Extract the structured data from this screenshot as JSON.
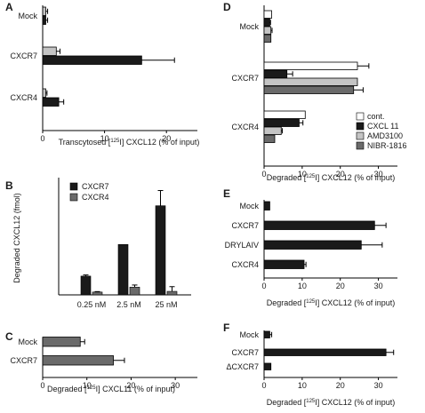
{
  "colors": {
    "black": "#1a1a1a",
    "lightgray": "#c4c4c4",
    "darkgray": "#6a6a6a",
    "white": "#ffffff"
  },
  "panels": {
    "A": {
      "letter": "A",
      "xlabel_pre": "Transcytosed [",
      "xlabel_sup": "125",
      "xlabel_post": "I] CXCL12 (% of input)"
    },
    "B": {
      "letter": "B",
      "ylabel": "Degraded CXCL12 (fmol)"
    },
    "C": {
      "letter": "C",
      "xlabel_pre": "Degraded [",
      "xlabel_sup": "125",
      "xlabel_post": "I] CXCL11 (% of input)"
    },
    "D": {
      "letter": "D",
      "xlabel_pre": "Degraded [",
      "xlabel_sup": "125",
      "xlabel_post": "I] CXCL12 (% of input)"
    },
    "E": {
      "letter": "E",
      "xlabel_pre": "Degraded [",
      "xlabel_sup": "125",
      "xlabel_post": "I] CXCL12 (% of input)"
    },
    "F": {
      "letter": "F",
      "xlabel_pre": "Degraded [",
      "xlabel_sup": "125",
      "xlabel_post": "I] CXCL12 (% of input)"
    }
  },
  "chart_data": [
    {
      "panel": "A",
      "type": "bar",
      "orientation": "horizontal",
      "categories": [
        "Mock",
        "CXCR7",
        "CXCR4"
      ],
      "series": [
        {
          "name": "",
          "color": "lightgray",
          "values": [
            0.5,
            2.2,
            0.5
          ],
          "errors": [
            0.3,
            0.6,
            0.2
          ]
        },
        {
          "name": "",
          "color": "black",
          "values": [
            0.5,
            16.0,
            2.6
          ],
          "errors": [
            0.3,
            5.3,
            0.8
          ]
        }
      ],
      "xlim": [
        0,
        25
      ],
      "xticks": [
        0,
        10,
        20
      ]
    },
    {
      "panel": "B",
      "type": "bar",
      "orientation": "vertical",
      "categories": [
        "0.25 nM",
        "2.5 nM",
        "25 nM"
      ],
      "series": [
        {
          "name": "CXCR7",
          "color": "black",
          "values": [
            8,
            21.5,
            38
          ],
          "errors": [
            0.5,
            0,
            6.5
          ]
        },
        {
          "name": "CXCR4",
          "color": "darkgray",
          "values": [
            1.2,
            3.3,
            1.5
          ],
          "errors": [
            0.2,
            0.9,
            2.0
          ]
        }
      ],
      "ylim": [
        0,
        50
      ],
      "legend": "top-left"
    },
    {
      "panel": "C",
      "type": "bar",
      "orientation": "horizontal",
      "categories": [
        "Mock",
        "CXCR7"
      ],
      "series": [
        {
          "name": "",
          "color": "darkgray",
          "values": [
            8.5,
            16.0
          ],
          "errors": [
            1.0,
            2.5
          ]
        }
      ],
      "xlim": [
        0,
        35
      ],
      "xticks": [
        0,
        10,
        20,
        30
      ]
    },
    {
      "panel": "D",
      "type": "bar",
      "orientation": "horizontal",
      "categories": [
        "Mock",
        "CXCR7",
        "CXCR4"
      ],
      "series": [
        {
          "name": "cont.",
          "color": "white",
          "values": [
            2.0,
            24.5,
            10.8
          ],
          "errors": [
            0,
            3.0,
            0
          ]
        },
        {
          "name": "CXCL 11",
          "color": "black",
          "values": [
            1.5,
            6.0,
            9.2
          ],
          "errors": [
            0.2,
            1.5,
            1.0
          ]
        },
        {
          "name": "AMD3100",
          "color": "lightgray",
          "values": [
            1.8,
            24.5,
            4.5
          ],
          "errors": [
            0.3,
            0,
            0.3
          ]
        },
        {
          "name": "NIBR-1816",
          "color": "darkgray",
          "values": [
            1.8,
            23.5,
            2.8
          ],
          "errors": [
            0,
            2.5,
            0
          ]
        }
      ],
      "xlim": [
        0,
        35
      ],
      "xticks": [
        0,
        10,
        20,
        30
      ],
      "legend": "right"
    },
    {
      "panel": "E",
      "type": "bar",
      "orientation": "horizontal",
      "categories": [
        "Mock",
        "CXCR7",
        "DRYLAIV",
        "CXCR4"
      ],
      "series": [
        {
          "name": "",
          "color": "black",
          "values": [
            1.5,
            29.0,
            25.5,
            10.5
          ],
          "errors": [
            0,
            3.0,
            5.5,
            0.5
          ]
        }
      ],
      "xlim": [
        0,
        35
      ],
      "xticks": [
        0,
        10,
        20,
        30
      ]
    },
    {
      "panel": "F",
      "type": "bar",
      "orientation": "horizontal",
      "categories": [
        "Mock",
        "CXCR7",
        "ΔCXCR7"
      ],
      "series": [
        {
          "name": "",
          "color": "black",
          "values": [
            1.5,
            32.0,
            1.8
          ],
          "errors": [
            0.5,
            2.0,
            0
          ]
        }
      ],
      "xlim": [
        0,
        35
      ],
      "xticks": [
        0,
        10,
        20,
        30
      ]
    }
  ]
}
